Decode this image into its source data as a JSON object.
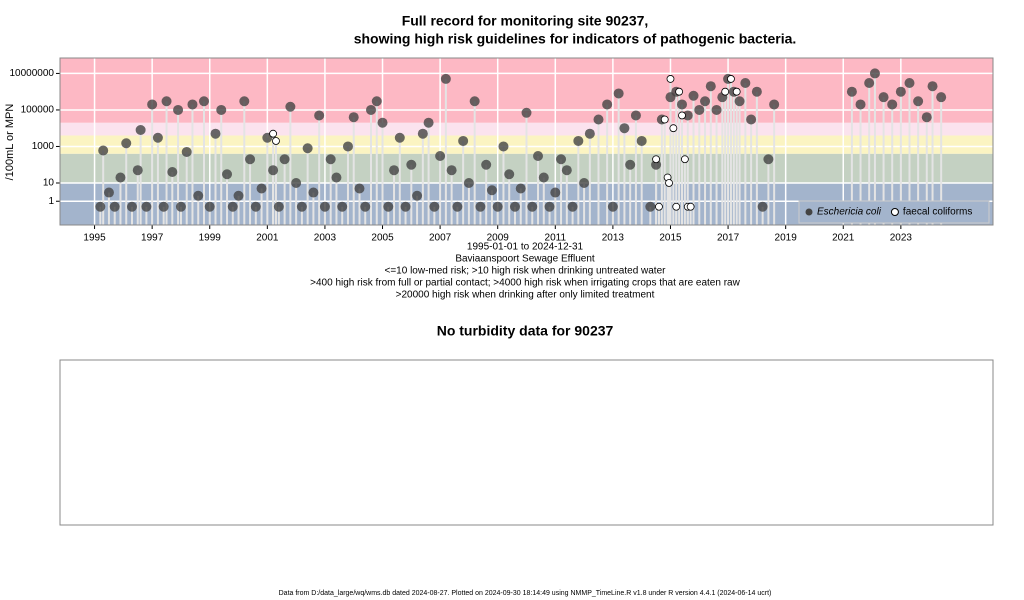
{
  "chart_data": {
    "type": "scatter",
    "title": "Full record for monitoring site 90237,",
    "title2": "showing high risk guidelines for indicators of pathogenic bacteria.",
    "ylabel": "/100mL or MPN",
    "x_range_label": "1995-01-01 to 2024-12-31",
    "site_label": "Baviaanspoort Sewage Effluent",
    "guidelines": [
      "<=10 low-med risk; >10 high risk when drinking untreated water",
      ">400 high risk from full or partial contact; >4000 high risk when irrigating crops that are eaten raw",
      ">20000 high risk when drinking after only limited treatment"
    ],
    "log_y": true,
    "xlim": [
      1993.8,
      2026.2
    ],
    "xticks": [
      1995,
      1997,
      1999,
      2001,
      2003,
      2005,
      2007,
      2009,
      2011,
      2013,
      2015,
      2017,
      2019,
      2021,
      2023
    ],
    "ylim": [
      0.05,
      70000000
    ],
    "yticks": [
      1,
      10,
      1000,
      100000,
      10000000
    ],
    "band_thresholds": [
      10,
      400,
      4000,
      20000
    ],
    "band_colors": [
      "#a3b4cc",
      "#c4d1c2",
      "#fbf4c2",
      "#fbe3ee",
      "#fdb8c4"
    ],
    "legend": "bottom-right",
    "series": [
      {
        "name": "Eschericia coli",
        "color": "#444444",
        "x": [
          1995.2,
          1995.3,
          1995.5,
          1995.7,
          1995.9,
          1996.1,
          1996.3,
          1996.5,
          1996.6,
          1996.8,
          1997.0,
          1997.2,
          1997.4,
          1997.5,
          1997.7,
          1997.9,
          1998.0,
          1998.2,
          1998.4,
          1998.6,
          1998.8,
          1999.0,
          1999.2,
          1999.4,
          1999.6,
          1999.8,
          2000.0,
          2000.2,
          2000.4,
          2000.6,
          2000.8,
          2001.0,
          2001.2,
          2001.4,
          2001.6,
          2001.8,
          2002.0,
          2002.2,
          2002.4,
          2002.6,
          2002.8,
          2003.0,
          2003.2,
          2003.4,
          2003.6,
          2003.8,
          2004.0,
          2004.2,
          2004.4,
          2004.6,
          2004.8,
          2005.0,
          2005.2,
          2005.4,
          2005.6,
          2005.8,
          2006.0,
          2006.2,
          2006.4,
          2006.6,
          2006.8,
          2007.0,
          2007.2,
          2007.4,
          2007.6,
          2007.8,
          2008.0,
          2008.2,
          2008.4,
          2008.6,
          2008.8,
          2009.0,
          2009.2,
          2009.4,
          2009.6,
          2009.8,
          2010.0,
          2010.2,
          2010.4,
          2010.6,
          2010.8,
          2011.0,
          2011.2,
          2011.4,
          2011.6,
          2011.8,
          2012.0,
          2012.2,
          2012.5,
          2012.8,
          2013.0,
          2013.2,
          2013.4,
          2013.6,
          2013.8,
          2014.0,
          2014.3,
          2014.5,
          2014.7,
          2015.0,
          2015.2,
          2015.4,
          2015.6,
          2015.8,
          2016.0,
          2016.2,
          2016.4,
          2016.6,
          2016.8,
          2017.0,
          2017.2,
          2017.4,
          2017.6,
          2017.8,
          2018.0,
          2018.2,
          2018.4,
          2018.6,
          2021.3,
          2021.6,
          2021.9,
          2022.1,
          2022.4,
          2022.7,
          2023.0,
          2023.3,
          2023.6,
          2023.9,
          2024.1,
          2024.4
        ],
        "values": [
          0.5,
          600,
          3,
          0.5,
          20,
          1500,
          0.5,
          50,
          8000,
          0.5,
          200000,
          3000,
          0.5,
          300000,
          40,
          100000,
          0.5,
          500,
          200000,
          2,
          300000,
          0.5,
          5000,
          100000,
          30,
          0.5,
          2,
          300000,
          200,
          0.5,
          5,
          3000,
          50,
          0.5,
          200,
          150000,
          10,
          0.5,
          800,
          3,
          50000,
          0.5,
          200,
          20,
          0.5,
          1000,
          40000,
          5,
          0.5,
          100000,
          300000,
          20000,
          0.5,
          50,
          3000,
          0.5,
          100,
          2,
          5000,
          20000,
          0.5,
          300,
          5000000,
          50,
          0.5,
          2000,
          10,
          300000,
          0.5,
          100,
          4,
          0.5,
          1000,
          30,
          0.5,
          5,
          70000,
          0.5,
          300,
          20,
          0.5,
          3,
          200,
          50,
          0.5,
          2000,
          10,
          5000,
          30000,
          200000,
          0.5,
          800000,
          10000,
          100,
          50000,
          2000,
          0.5,
          100,
          30000,
          500000,
          1000000,
          200000,
          50000,
          600000,
          100000,
          300000,
          2000000,
          100000,
          500000,
          5000000,
          1000000,
          300000,
          3000000,
          30000,
          1000000,
          0.5,
          200,
          200000,
          1000000,
          200000,
          3000000,
          10000000,
          500000,
          200000,
          1000000,
          3000000,
          300000,
          40000,
          2000000,
          500000
        ]
      },
      {
        "name": "faecal coliforms",
        "color": "#ffffff",
        "x": [
          2001.2,
          2001.3,
          2014.5,
          2014.6,
          2014.8,
          2014.9,
          2014.95,
          2015.0,
          2015.1,
          2015.2,
          2015.3,
          2015.4,
          2015.5,
          2015.6,
          2015.7,
          2016.9,
          2017.1,
          2017.3
        ],
        "values": [
          5000,
          2000,
          200,
          0.5,
          30000,
          20,
          10,
          5000000,
          10000,
          0.5,
          1000000,
          50000,
          200,
          0.5,
          0.5,
          1000000,
          5000000,
          1000000
        ]
      }
    ]
  },
  "turbidity": {
    "title": "No turbidity data for 90237"
  },
  "footer": "Data from D:/data_large/wq/wms.db dated 2024-08-27. Plotted on 2024-09-30 18:14:49 using NMMP_TimeLine.R v1.8 under R version 4.4.1 (2024-06-14 ucrt)"
}
